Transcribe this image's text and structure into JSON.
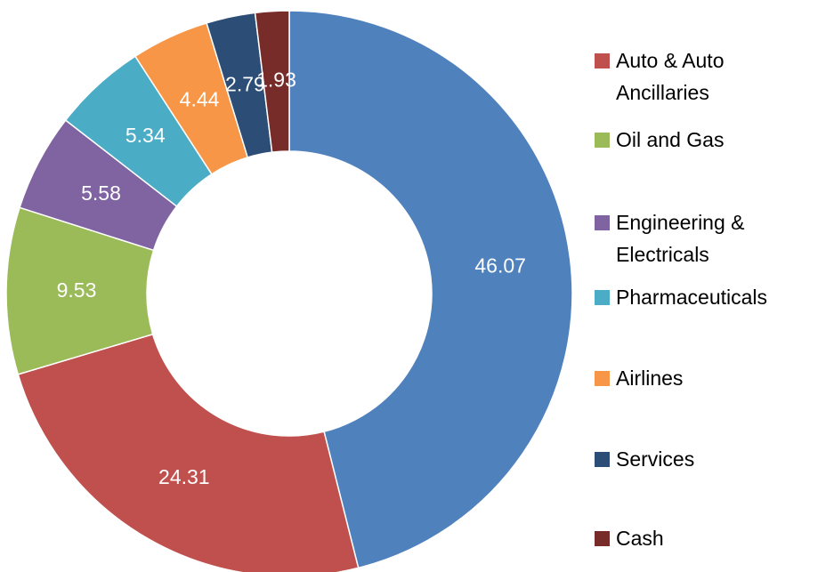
{
  "chart_data": {
    "type": "donut",
    "categories": [
      null,
      "Auto & Auto Ancillaries",
      "Oil and Gas",
      "Engineering & Electricals",
      "Pharmaceuticals",
      "Airlines",
      "Services",
      "Cash"
    ],
    "values": [
      46.07,
      24.31,
      9.53,
      5.58,
      5.34,
      4.44,
      2.79,
      1.93
    ],
    "colors": [
      "#4f81bd",
      "#c0504d",
      "#9bbb59",
      "#8064a2",
      "#4bacc6",
      "#f79646",
      "#2c4d75",
      "#772c2a"
    ],
    "legend": "right"
  }
}
